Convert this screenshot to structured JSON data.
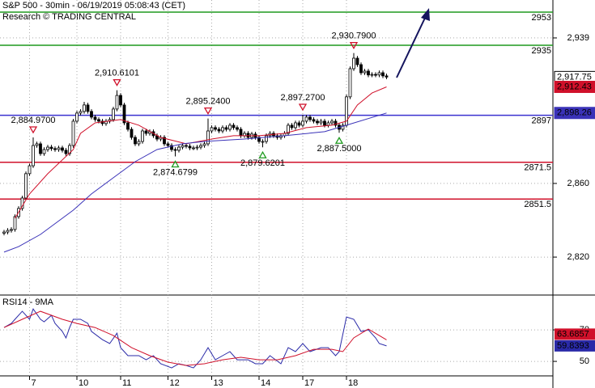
{
  "chart_data": [
    {
      "type": "candlestick",
      "title": "S&P 500 - 30min - 06/19/2019 05:08:43 (CET)",
      "subtitle": "Research © TRADING CENTRAL",
      "categories": [
        null,
        null,
        null,
        null,
        null,
        null,
        null,
        "7",
        null,
        null,
        null,
        null,
        null,
        null,
        null,
        null,
        null,
        null,
        null,
        null,
        "10",
        null,
        null,
        null,
        null,
        null,
        null,
        null,
        null,
        null,
        null,
        null,
        "11",
        null,
        null,
        null,
        null,
        null,
        null,
        null,
        null,
        null,
        null,
        null,
        null,
        "12",
        null,
        null,
        null,
        null,
        null,
        null,
        null,
        null,
        null,
        null,
        null,
        "13",
        null,
        null,
        null,
        null,
        null,
        null,
        null,
        null,
        null,
        null,
        null,
        null,
        "14",
        null,
        null,
        null,
        null,
        null,
        null,
        null,
        null,
        null,
        null,
        null,
        "17",
        null,
        null,
        null,
        null,
        null,
        null,
        null,
        null,
        null,
        null,
        null,
        "18",
        null,
        null,
        null,
        null,
        null,
        null,
        null,
        null,
        null,
        null,
        null
      ],
      "open": [
        2833.0,
        2833.6,
        2834.5,
        2835.0,
        2842.0,
        2846.4,
        2852.1,
        2865.3,
        2869.6,
        2880.6,
        2881.5,
        2876.2,
        2878.4,
        2879.7,
        2878.9,
        2878.4,
        2879.3,
        2878.0,
        2876.2,
        2880.6,
        2893.8,
        2898.2,
        2899.1,
        2902.6,
        2899.1,
        2896.0,
        2894.7,
        2893.8,
        2892.5,
        2893.8,
        2894.7,
        2900.4,
        2907.8,
        2902.6,
        2892.9,
        2889.4,
        2885.0,
        2881.5,
        2882.8,
        2888.5,
        2887.2,
        2888.1,
        2885.9,
        2884.1,
        2885.0,
        2881.5,
        2880.6,
        2878.4,
        2878.0,
        2879.7,
        2880.6,
        2880.2,
        2879.3,
        2879.3,
        2879.7,
        2880.6,
        2881.5,
        2888.5,
        2890.3,
        2889.4,
        2888.5,
        2890.3,
        2889.4,
        2891.6,
        2890.3,
        2889.4,
        2885.9,
        2887.2,
        2885.0,
        2886.8,
        2885.0,
        2882.8,
        2882.8,
        2885.9,
        2887.2,
        2885.9,
        2885.0,
        2885.9,
        2887.2,
        2891.6,
        2890.3,
        2892.9,
        2891.6,
        2893.8,
        2896.0,
        2894.7,
        2893.8,
        2892.9,
        2893.8,
        2891.6,
        2892.9,
        2893.8,
        2891.6,
        2889.4,
        2891.6,
        2907.0,
        2922.3,
        2928.0,
        2924.5,
        2920.1,
        2921.0,
        2918.9,
        2919.2,
        2918.9,
        2920.1,
        2918.4
      ],
      "high": [
        2834.8,
        2835.7,
        2836.2,
        2843.2,
        2847.6,
        2853.3,
        2866.5,
        2870.8,
        2884.97,
        2882.7,
        2882.7,
        2879.6,
        2880.9,
        2880.9,
        2880.1,
        2880.5,
        2880.5,
        2879.2,
        2881.8,
        2895.0,
        2899.4,
        2900.3,
        2904.3,
        2903.8,
        2900.3,
        2897.2,
        2895.9,
        2895.0,
        2895.0,
        2895.9,
        2901.6,
        2910.61,
        2909.0,
        2903.8,
        2894.1,
        2890.6,
        2886.2,
        2884.0,
        2889.7,
        2889.7,
        2889.3,
        2889.3,
        2887.1,
        2886.2,
        2886.2,
        2882.7,
        2881.8,
        2879.6,
        2880.9,
        2881.8,
        2881.8,
        2881.4,
        2880.5,
        2880.9,
        2881.8,
        2882.7,
        2895.24,
        2891.5,
        2891.5,
        2890.6,
        2891.5,
        2891.5,
        2892.8,
        2892.8,
        2891.5,
        2890.6,
        2888.4,
        2888.4,
        2888.0,
        2888.0,
        2886.2,
        2884.0,
        2887.1,
        2888.4,
        2888.4,
        2887.1,
        2887.1,
        2888.4,
        2892.8,
        2892.8,
        2894.1,
        2894.1,
        2897.27,
        2897.2,
        2897.2,
        2895.9,
        2895.0,
        2895.0,
        2895.0,
        2894.1,
        2895.0,
        2895.0,
        2892.8,
        2892.8,
        2908.2,
        2923.5,
        2930.79,
        2929.2,
        2925.7,
        2922.2,
        2922.2,
        2920.4,
        2920.4,
        2921.3,
        2921.3,
        2919.6
      ],
      "low": [
        2831.8,
        2832.4,
        2833.3,
        2833.8,
        2840.8,
        2845.2,
        2850.9,
        2864.1,
        2868.4,
        2879.4,
        2875.0,
        2875.0,
        2877.2,
        2877.7,
        2877.2,
        2877.2,
        2876.8,
        2875.0,
        2875.0,
        2879.4,
        2892.6,
        2897.0,
        2897.9,
        2897.9,
        2894.8,
        2893.5,
        2892.6,
        2891.3,
        2891.3,
        2892.6,
        2893.5,
        2899.2,
        2901.4,
        2891.7,
        2888.2,
        2883.8,
        2880.3,
        2880.3,
        2881.6,
        2886.0,
        2886.0,
        2884.7,
        2882.9,
        2882.9,
        2880.3,
        2879.4,
        2877.2,
        2874.68,
        2876.8,
        2878.5,
        2879.0,
        2878.1,
        2878.1,
        2878.1,
        2878.5,
        2879.4,
        2880.3,
        2887.3,
        2888.2,
        2887.3,
        2887.3,
        2888.2,
        2888.2,
        2889.1,
        2888.2,
        2884.7,
        2884.7,
        2883.8,
        2883.8,
        2883.8,
        2881.6,
        2879.62,
        2881.6,
        2884.7,
        2884.7,
        2883.8,
        2883.8,
        2884.7,
        2886.0,
        2889.1,
        2889.1,
        2890.4,
        2890.4,
        2892.6,
        2893.5,
        2892.6,
        2891.7,
        2891.7,
        2890.4,
        2890.4,
        2891.7,
        2890.4,
        2887.5,
        2888.2,
        2890.4,
        2905.8,
        2921.1,
        2923.3,
        2918.9,
        2918.9,
        2917.7,
        2917.7,
        2917.7,
        2917.7,
        2917.2,
        2916.6
      ],
      "close": [
        2833.6,
        2834.5,
        2835.0,
        2842.0,
        2846.4,
        2852.1,
        2865.3,
        2869.6,
        2880.6,
        2881.5,
        2876.2,
        2878.4,
        2879.7,
        2878.9,
        2878.4,
        2879.3,
        2878.0,
        2876.2,
        2880.6,
        2893.8,
        2898.2,
        2899.1,
        2902.6,
        2899.1,
        2896.0,
        2894.7,
        2893.8,
        2892.5,
        2893.8,
        2894.7,
        2900.4,
        2907.8,
        2902.6,
        2892.9,
        2889.4,
        2885.0,
        2881.5,
        2882.8,
        2888.5,
        2887.2,
        2888.1,
        2885.9,
        2884.1,
        2885.0,
        2881.5,
        2880.6,
        2878.4,
        2878.0,
        2879.7,
        2880.6,
        2880.2,
        2879.3,
        2879.3,
        2879.7,
        2880.6,
        2881.5,
        2888.5,
        2890.3,
        2889.4,
        2888.5,
        2890.3,
        2889.4,
        2891.6,
        2890.3,
        2889.4,
        2885.9,
        2887.2,
        2885.0,
        2886.8,
        2885.0,
        2882.8,
        2882.8,
        2885.9,
        2887.2,
        2885.9,
        2885.0,
        2885.9,
        2887.2,
        2891.6,
        2890.3,
        2892.9,
        2891.6,
        2893.8,
        2896.0,
        2894.7,
        2893.8,
        2892.9,
        2893.8,
        2891.6,
        2892.9,
        2893.8,
        2891.6,
        2889.4,
        2891.6,
        2907.0,
        2922.3,
        2928.0,
        2924.5,
        2920.1,
        2921.0,
        2918.9,
        2919.2,
        2918.9,
        2920.1,
        2918.4,
        2917.75
      ],
      "series": [
        {
          "color": "#d0102a",
          "x": [
            3,
            7,
            12,
            19,
            21,
            25,
            32,
            37,
            43,
            50,
            57,
            63,
            70,
            77,
            83,
            90,
            94,
            97,
            101,
            105
          ],
          "values": [
            2841.1,
            2854.3,
            2865.3,
            2878.4,
            2887.2,
            2892.9,
            2894.7,
            2891.6,
            2885.0,
            2881.5,
            2884.1,
            2885.9,
            2885.9,
            2887.2,
            2890.3,
            2891.6,
            2893.8,
            2902.6,
            2909.1,
            2912.43
          ]
        },
        {
          "color": "#3a32b8",
          "x": [
            0,
            4,
            10,
            19,
            24,
            30,
            36,
            42,
            49,
            55,
            66,
            77,
            88,
            94,
            105
          ],
          "values": [
            2822.7,
            2825.7,
            2832.3,
            2845.5,
            2854.3,
            2863.1,
            2871.8,
            2878.4,
            2881.5,
            2882.8,
            2884.1,
            2885.9,
            2888.1,
            2891.6,
            2898.26
          ]
        }
      ],
      "levels": [
        {
          "value": 2953,
          "color": "#1e9a1e"
        },
        {
          "value": 2935,
          "color": "#1e9a1e"
        },
        {
          "value": 2897,
          "color": "#3a32d0"
        },
        {
          "value": 2871.5,
          "color": "#d0102a"
        },
        {
          "value": 2851.5,
          "color": "#d0102a"
        }
      ],
      "price_tags": [
        {
          "value": 2917.75,
          "label": "2,917.75",
          "color": "#000000"
        },
        {
          "value": 2912.43,
          "label": "2,912.43",
          "color": "#d0102a"
        },
        {
          "value": 2898.26,
          "label": "2,898.26",
          "color": "#3a32b8"
        }
      ],
      "annotations": [
        {
          "x": 8,
          "value": 2884.97,
          "label": "2,884.9700",
          "kind": "high"
        },
        {
          "x": 31,
          "value": 2910.61,
          "label": "2,910.6101",
          "kind": "high"
        },
        {
          "x": 47,
          "value": 2874.68,
          "label": "2,874.6799",
          "kind": "low"
        },
        {
          "x": 56,
          "value": 2895.24,
          "label": "2,895.2400",
          "kind": "high"
        },
        {
          "x": 71,
          "value": 2879.62,
          "label": "2,879.6201",
          "kind": "low"
        },
        {
          "x": 82,
          "value": 2897.27,
          "label": "2,897.2700",
          "kind": "high"
        },
        {
          "x": 92,
          "value": 2887.5,
          "label": "2,887.5000",
          "kind": "low"
        },
        {
          "x": 96,
          "value": 2930.79,
          "label": "2,930.7900",
          "kind": "high"
        }
      ],
      "ylim": [
        2799.4,
        2959.6
      ],
      "yticks": [
        {
          "value": 2939,
          "label": "2,939"
        },
        {
          "value": 2860,
          "label": "2,860"
        },
        {
          "value": 2820,
          "label": "2,820"
        }
      ],
      "grid": true
    },
    {
      "type": "line",
      "title": "RSI14 - 9MA",
      "series": [
        {
          "color": "#2a2aa8",
          "x": [
            0,
            2,
            3,
            5,
            7,
            8,
            10,
            11,
            13,
            14,
            16,
            17,
            18,
            19,
            21,
            23,
            24,
            27,
            29,
            31,
            32,
            34,
            37,
            39,
            41,
            43,
            46,
            48,
            50,
            52,
            54,
            56,
            58,
            60,
            62,
            64,
            67,
            69,
            71,
            73,
            76,
            78,
            80,
            82,
            84,
            87,
            89,
            91,
            92,
            94,
            96,
            98,
            100,
            102,
            103,
            105
          ],
          "values": [
            71.5,
            74.1,
            76.7,
            81.8,
            76.7,
            83.3,
            76.7,
            75.1,
            79.2,
            74.1,
            69.0,
            64.9,
            71.5,
            76.7,
            76.7,
            74.1,
            69.0,
            63.8,
            61.3,
            67.9,
            58.7,
            53.6,
            53.6,
            51.0,
            53.6,
            48.5,
            45.9,
            48.5,
            47.4,
            45.9,
            51.0,
            58.7,
            51.0,
            53.6,
            56.2,
            51.0,
            51.0,
            48.5,
            48.5,
            53.6,
            48.5,
            58.7,
            56.2,
            61.3,
            56.2,
            58.7,
            58.7,
            53.6,
            56.2,
            78.2,
            76.7,
            69.0,
            70.0,
            64.9,
            61.3,
            59.8393
          ]
        },
        {
          "color": "#d0102a",
          "x": [
            0,
            5,
            10,
            16,
            20,
            25,
            30,
            35,
            40,
            45,
            50,
            55,
            60,
            65,
            70,
            75,
            80,
            85,
            90,
            93,
            96,
            100,
            105
          ],
          "values": [
            71.5,
            76.7,
            81.8,
            76.7,
            74.1,
            71.5,
            66.4,
            58.7,
            53.6,
            49.5,
            47.4,
            48.5,
            51.0,
            52.6,
            51.0,
            51.0,
            53.6,
            57.7,
            57.7,
            56.2,
            64.9,
            70.5,
            63.6857
          ]
        }
      ],
      "tags": [
        {
          "value": 63.6857,
          "color": "#d0102a"
        },
        {
          "value": 59.8393,
          "color": "#2a2aa8"
        }
      ],
      "ylim": [
        40.8,
        92.1
      ],
      "yticks": [
        70,
        50
      ],
      "grid": true
    }
  ]
}
